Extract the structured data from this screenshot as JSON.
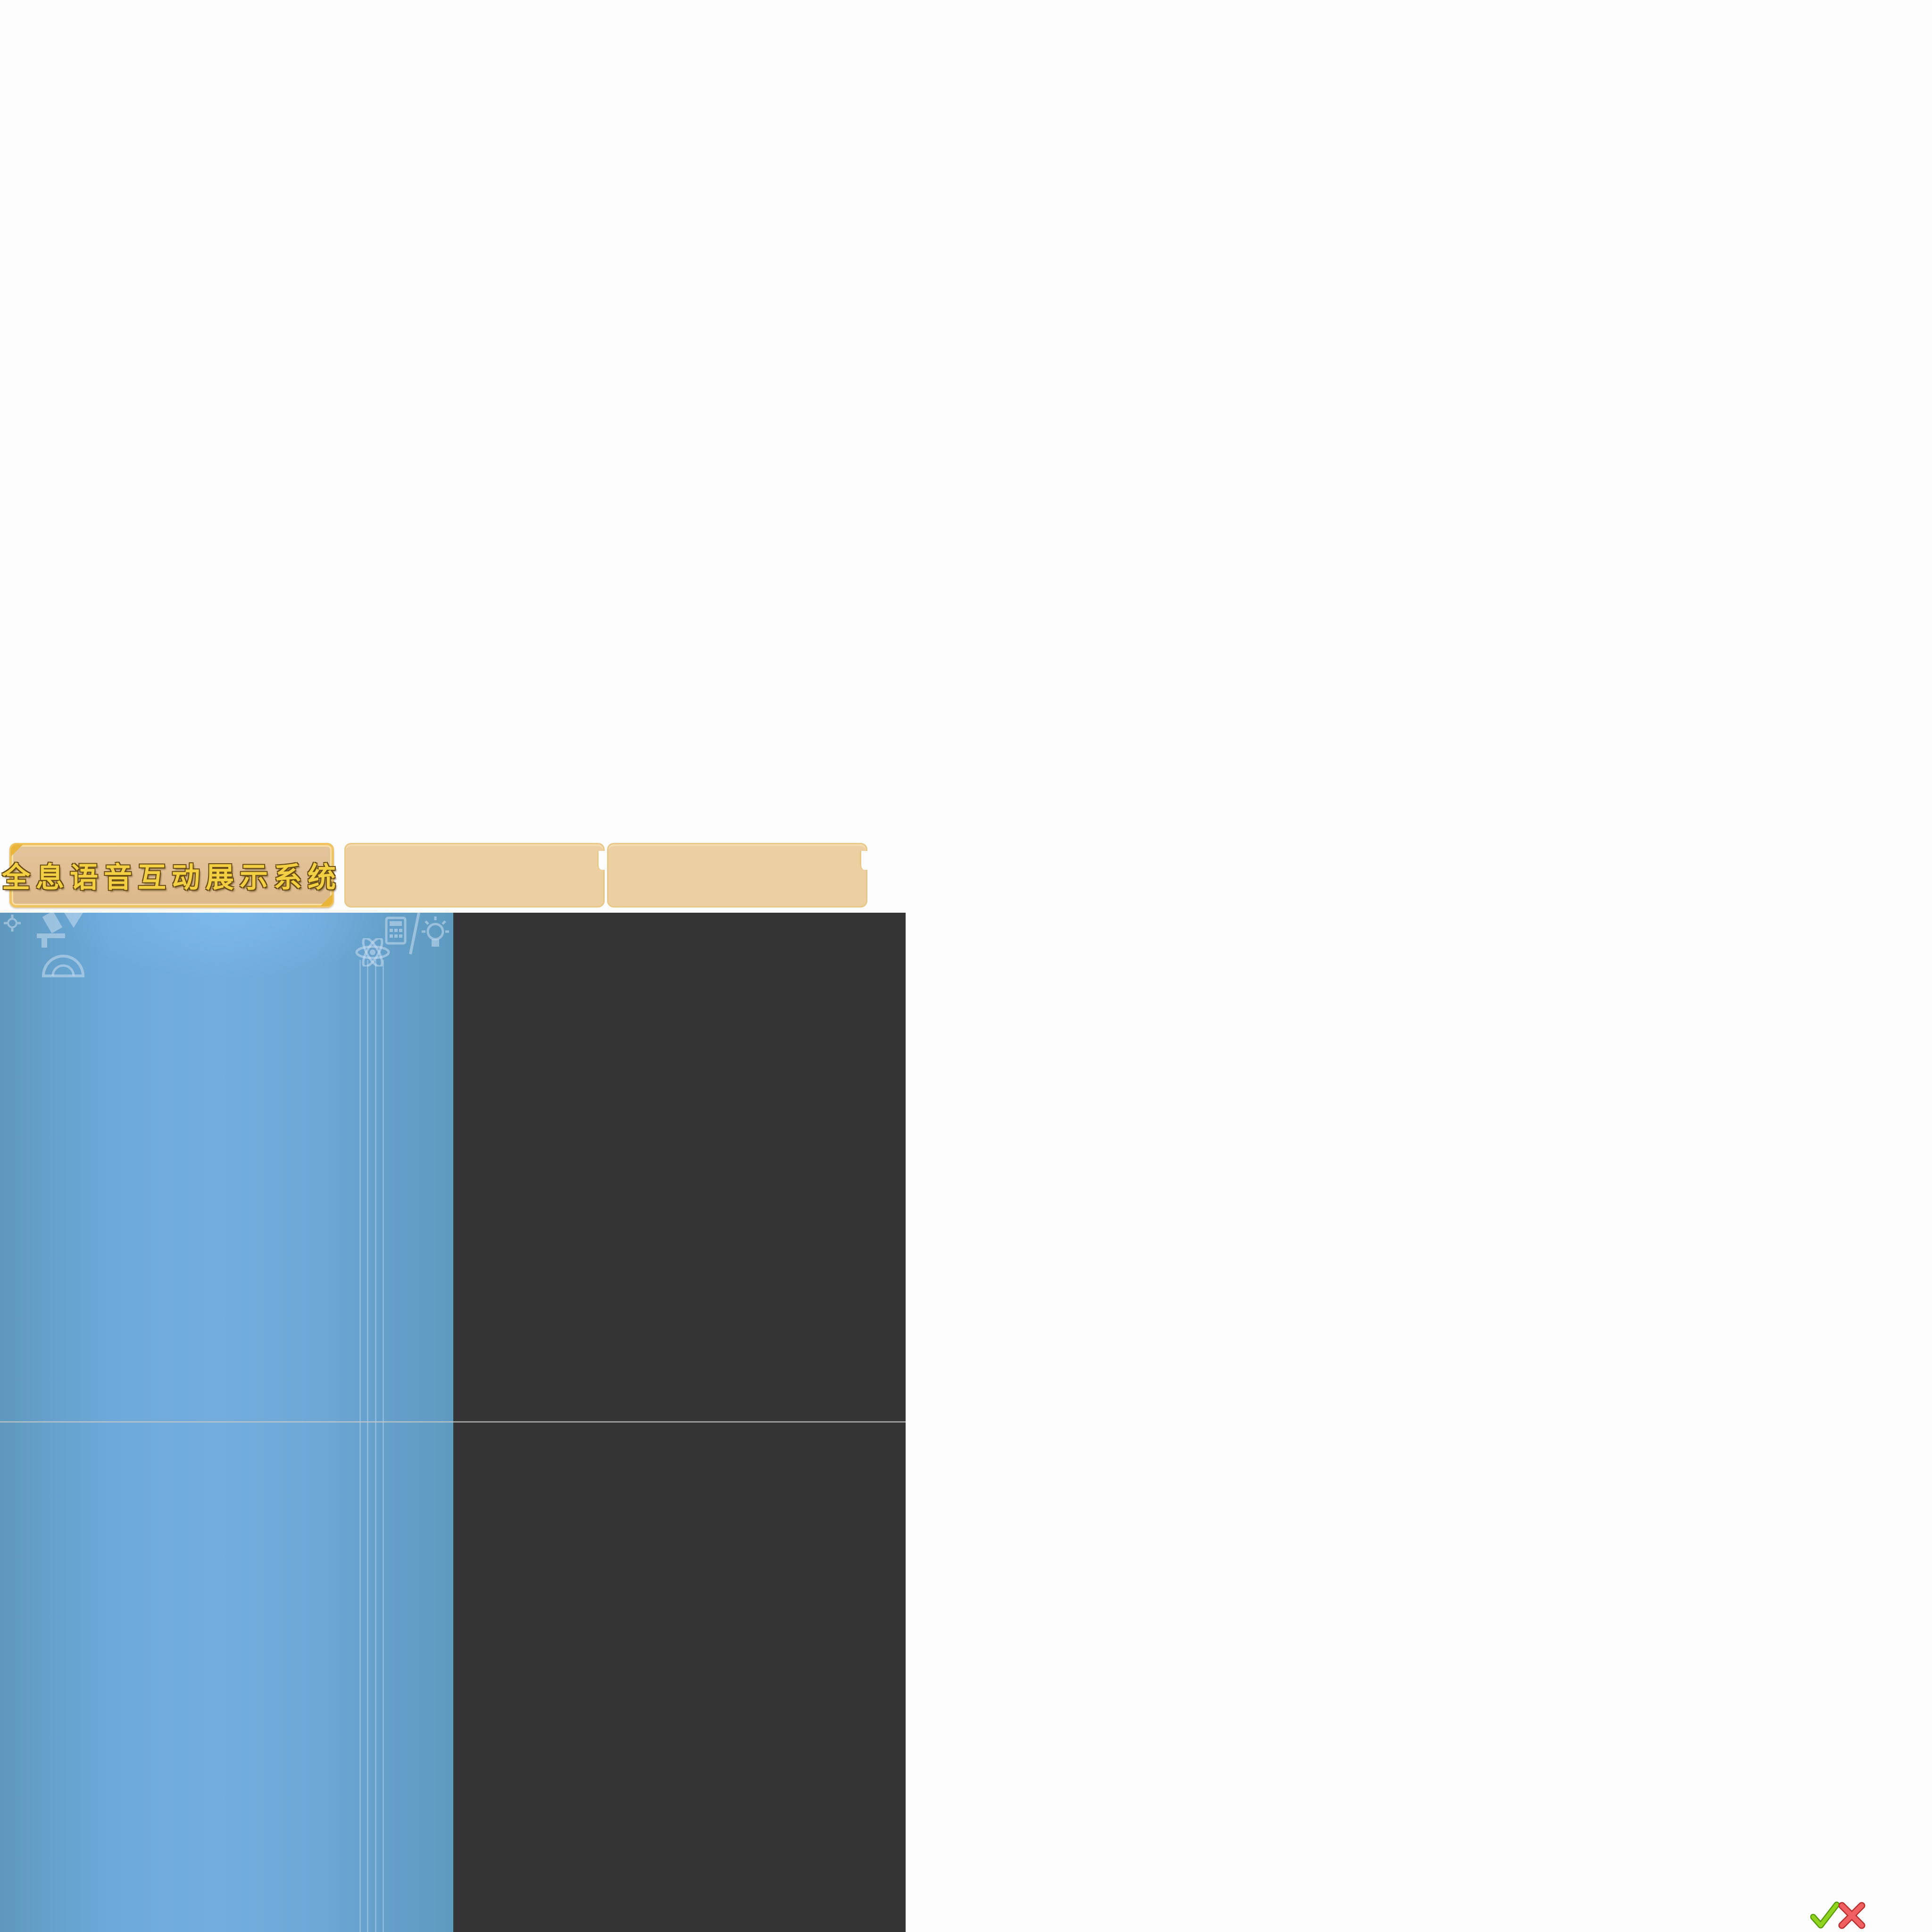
{
  "tabs": [
    {
      "label": "全息语音互动展示系统",
      "active": true
    },
    {
      "label": "",
      "active": false
    },
    {
      "label": "",
      "active": false
    }
  ],
  "colors": {
    "page_background": "#fdfdfd",
    "tab_active_fill": "#dcb98a",
    "tab_active_border": "#f0c463",
    "tab_label_text": "#f3d043",
    "tab_idle_fill": "#edd0a2",
    "left_panel_blue": "#6ea9d9",
    "right_panel_dark": "#343434",
    "confirm_green": "#7cc316",
    "cancel_red": "#e84a4a"
  },
  "icons": {
    "decorations": [
      "gear-icon",
      "microscope-icon",
      "protractor-icon",
      "calculator-icon",
      "atom-icon",
      "pencil-icon",
      "lightbulb-icon"
    ],
    "confirm": "checkmark-icon",
    "cancel": "cross-icon"
  }
}
